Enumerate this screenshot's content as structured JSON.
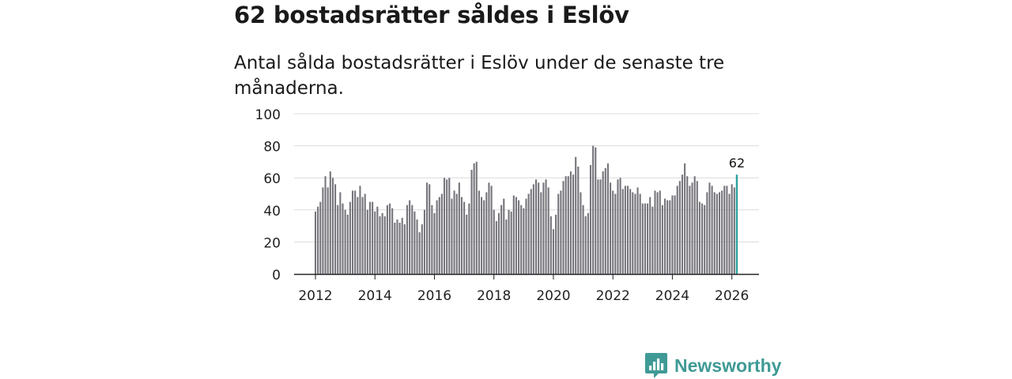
{
  "header": {
    "title": "62 bostadsrätter såldes i Eslöv",
    "subtitle": "Antal sålda bostadsrätter i Eslöv under de senaste tre månaderna."
  },
  "brand": {
    "name": "Newsworthy",
    "icon": "newsworthy-logo-icon",
    "color": "#3f9a95"
  },
  "chart_data": {
    "type": "bar",
    "title": "62 bostadsrätter såldes i Eslöv",
    "subtitle": "Antal sålda bostadsrätter i Eslöv under de senaste tre månaderna.",
    "xlabel": "",
    "ylabel": "",
    "ylim": [
      0,
      100
    ],
    "yticks": [
      0,
      20,
      40,
      60,
      80,
      100
    ],
    "xticks": [
      "2012",
      "2014",
      "2016",
      "2018",
      "2020",
      "2022",
      "2024",
      "2026"
    ],
    "x_start": "2012-01",
    "grid": true,
    "bar_color": "#77757c",
    "highlight_color": "#2aa3a0",
    "highlight_label": "62",
    "values": [
      39,
      42,
      45,
      54,
      61,
      54,
      64,
      60,
      56,
      43,
      51,
      44,
      40,
      37,
      45,
      52,
      52,
      48,
      55,
      48,
      50,
      40,
      45,
      45,
      39,
      42,
      36,
      38,
      36,
      43,
      44,
      41,
      32,
      34,
      32,
      35,
      31,
      43,
      46,
      43,
      39,
      34,
      26,
      31,
      40,
      57,
      56,
      43,
      38,
      46,
      48,
      50,
      60,
      59,
      60,
      47,
      52,
      50,
      57,
      48,
      45,
      37,
      44,
      65,
      69,
      70,
      52,
      48,
      46,
      51,
      57,
      55,
      40,
      33,
      38,
      43,
      47,
      34,
      40,
      39,
      49,
      48,
      46,
      43,
      41,
      47,
      50,
      53,
      56,
      59,
      57,
      51,
      57,
      59,
      54,
      36,
      28,
      37,
      50,
      52,
      58,
      61,
      61,
      64,
      62,
      73,
      67,
      51,
      43,
      36,
      38,
      68,
      80,
      79,
      59,
      59,
      64,
      66,
      69,
      57,
      52,
      50,
      59,
      60,
      53,
      55,
      55,
      53,
      51,
      50,
      54,
      50,
      44,
      44,
      44,
      48,
      42,
      52,
      51,
      52,
      43,
      47,
      46,
      46,
      49,
      49,
      55,
      58,
      62,
      69,
      61,
      55,
      57,
      61,
      58,
      45,
      44,
      43,
      51,
      57,
      55,
      51,
      50,
      51,
      52,
      55,
      55,
      50,
      56,
      54,
      62
    ]
  }
}
